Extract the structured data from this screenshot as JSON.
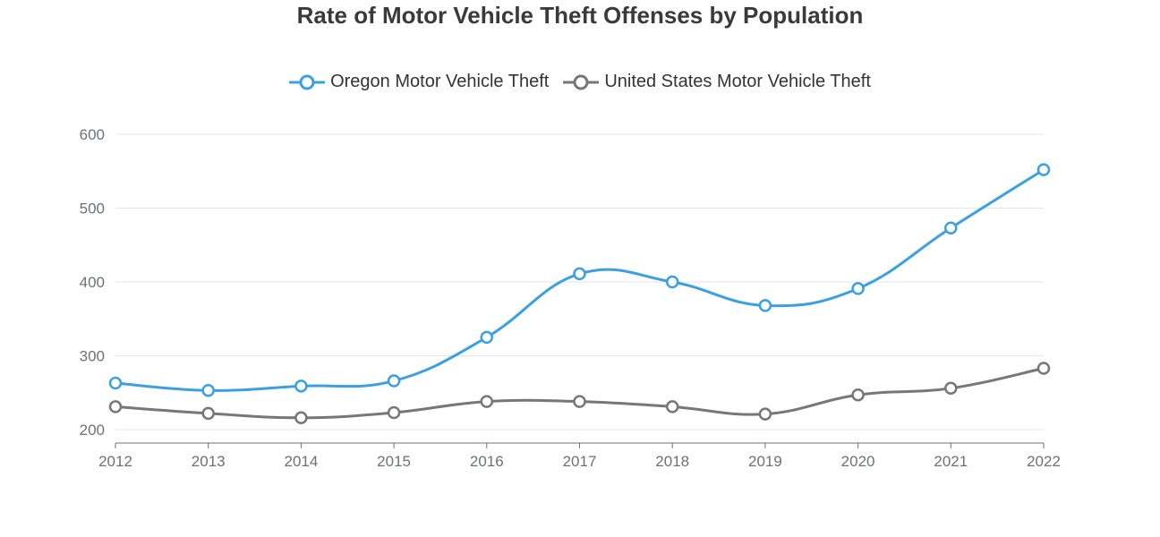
{
  "chart_data": {
    "type": "line",
    "title": "Rate of Motor Vehicle Theft Offenses by Population",
    "xlabel": "",
    "ylabel": "",
    "categories": [
      "2012",
      "2013",
      "2014",
      "2015",
      "2016",
      "2017",
      "2018",
      "2019",
      "2020",
      "2021",
      "2022"
    ],
    "ylim": [
      200,
      600
    ],
    "yticks": [
      200,
      300,
      400,
      500,
      600
    ],
    "grid": true,
    "legend_position": "top-center",
    "series": [
      {
        "name": "Oregon Motor Vehicle Theft",
        "color": "#3ba0e3",
        "values": [
          263,
          253,
          259,
          266,
          325,
          411,
          400,
          368,
          391,
          473,
          552
        ]
      },
      {
        "name": "United States Motor Vehicle Theft",
        "color": "#777777",
        "values": [
          231,
          222,
          216,
          223,
          238,
          238,
          231,
          221,
          247,
          256,
          283
        ]
      }
    ]
  }
}
